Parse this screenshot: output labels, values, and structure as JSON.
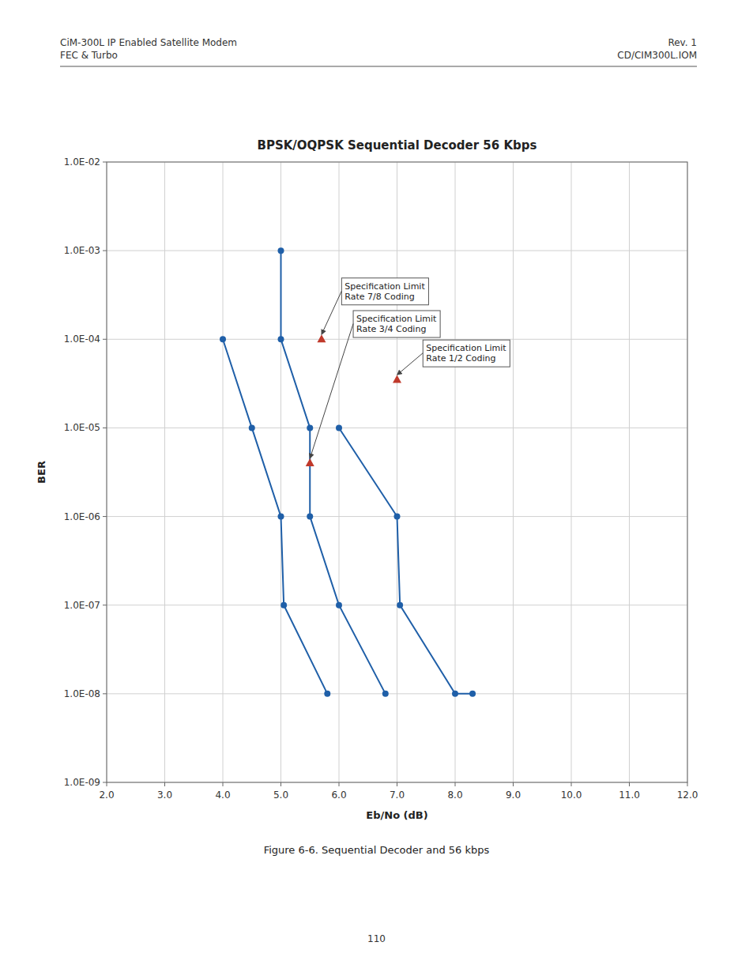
{
  "chart_data": {
    "type": "line",
    "title": "BPSK/OQPSK Sequential Decoder 56 Kbps",
    "xlabel": "Eb/No (dB)",
    "ylabel": "BER",
    "header_left": [
      "CiM-300L IP Enabled Satellite Modem",
      "FEC & Turbo"
    ],
    "header_right": [
      "Rev. 1",
      "CD/CIM300L.IOM"
    ],
    "caption": "Figure 6-6.  Sequential Decoder and 56 kbps",
    "page_number": "110",
    "log": "y",
    "grid": true,
    "marker": "circle",
    "xlim": [
      2.0,
      12.0
    ],
    "ylim": [
      1e-09,
      0.01
    ],
    "xticks": [
      {
        "value": 2.0,
        "label": "2.0"
      },
      {
        "value": 3.0,
        "label": "3.0"
      },
      {
        "value": 4.0,
        "label": "4.0"
      },
      {
        "value": 5.0,
        "label": "5.0"
      },
      {
        "value": 6.0,
        "label": "6.0"
      },
      {
        "value": 7.0,
        "label": "7.0"
      },
      {
        "value": 8.0,
        "label": "8.0"
      },
      {
        "value": 9.0,
        "label": "9.0"
      },
      {
        "value": 10.0,
        "label": "10.0"
      },
      {
        "value": 11.0,
        "label": "11.0"
      },
      {
        "value": 12.0,
        "label": "12.0"
      }
    ],
    "yticks": [
      {
        "value": 1e-09,
        "label": "1.0E-09"
      },
      {
        "value": 1e-08,
        "label": "1.0E-08"
      },
      {
        "value": 1e-07,
        "label": "1.0E-07"
      },
      {
        "value": 1e-06,
        "label": "1.0E-06"
      },
      {
        "value": 1e-05,
        "label": "1.0E-05"
      },
      {
        "value": 0.0001,
        "label": "1.0E-04"
      },
      {
        "value": 0.001,
        "label": "1.0E-03"
      },
      {
        "value": 0.01,
        "label": "1.0E-02"
      }
    ],
    "series": [
      {
        "x": [
          4.0,
          4.5,
          5.0,
          5.05,
          5.8
        ],
        "values": [
          0.0001,
          1e-05,
          1e-06,
          1e-07,
          1e-08
        ]
      },
      {
        "x": [
          5.0,
          5.0,
          5.5,
          5.5,
          6.0,
          6.8
        ],
        "values": [
          0.001,
          0.0001,
          1e-05,
          1e-06,
          1e-07,
          1e-08
        ]
      },
      {
        "x": [
          6.0,
          7.0,
          7.05,
          8.0,
          8.3
        ],
        "values": [
          1e-05,
          1e-06,
          1e-07,
          1e-08,
          1e-08
        ]
      }
    ],
    "annotations": [
      {
        "text": "Specification Limit\nRate 7/8 Coding",
        "x": 5.7,
        "y": 0.0001,
        "text_x": 6.1,
        "text_y": 0.00035
      },
      {
        "text": "Specification Limit\nRate 3/4 Coding",
        "x": 5.5,
        "y": 4e-06,
        "text_x": 6.3,
        "text_y": 0.00015
      },
      {
        "text": "Specification Limit\nRate 1/2 Coding",
        "x": 7.0,
        "y": 3.5e-05,
        "text_x": 7.5,
        "text_y": 7e-05
      }
    ]
  }
}
